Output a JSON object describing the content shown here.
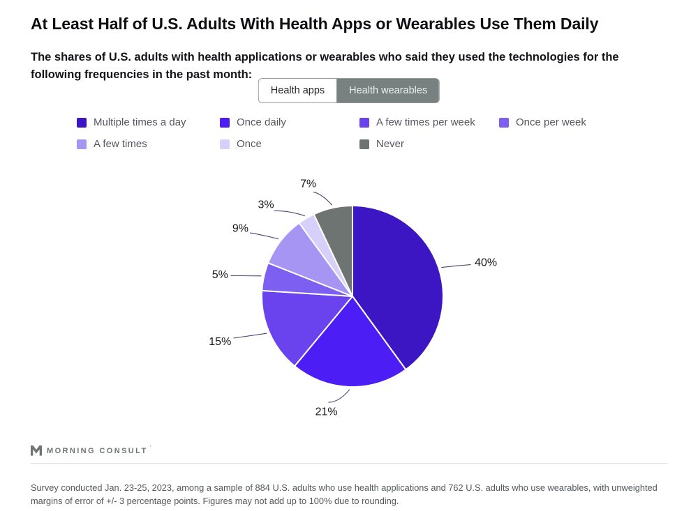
{
  "page": {
    "title": "At Least Half of U.S. Adults With Health Apps or Wearables Use Them Daily",
    "subtitle": "The shares of U.S. adults with health applications or wearables who said they used the technologies for the following frequencies in the past month:"
  },
  "toggle": {
    "options": [
      {
        "label": "Health apps",
        "active": true
      },
      {
        "label": "Health wearables",
        "active": false
      }
    ]
  },
  "chart_data": {
    "type": "pie",
    "title": "At Least Half of U.S. Adults With Health Apps or Wearables Use Them Daily",
    "selected_series": "Health apps",
    "start_angle_deg": 0,
    "direction": "clockwise",
    "legend_position": "top",
    "value_format": "percent",
    "slices": [
      {
        "label": "Multiple times a day",
        "value": 40,
        "color": "#3D16C3"
      },
      {
        "label": "Once daily",
        "value": 21,
        "color": "#4C1EF5"
      },
      {
        "label": "A few times per week",
        "value": 15,
        "color": "#6A43EE"
      },
      {
        "label": "Once per week",
        "value": 5,
        "color": "#7D5FF1"
      },
      {
        "label": "A few times",
        "value": 9,
        "color": "#A795F3"
      },
      {
        "label": "Once",
        "value": 3,
        "color": "#D7D0FA"
      },
      {
        "label": "Never",
        "value": 7,
        "color": "#6E7472"
      }
    ]
  },
  "footer": {
    "brand": "MORNING CONSULT",
    "brand_tm": "’",
    "note": "Survey conducted Jan. 23-25, 2023, among a sample of 884 U.S. adults who use health applications and 762 U.S. adults who use wearables, with unweighted margins of error of +/- 3 percentage points. Figures may not add up to 100% due to rounding."
  }
}
